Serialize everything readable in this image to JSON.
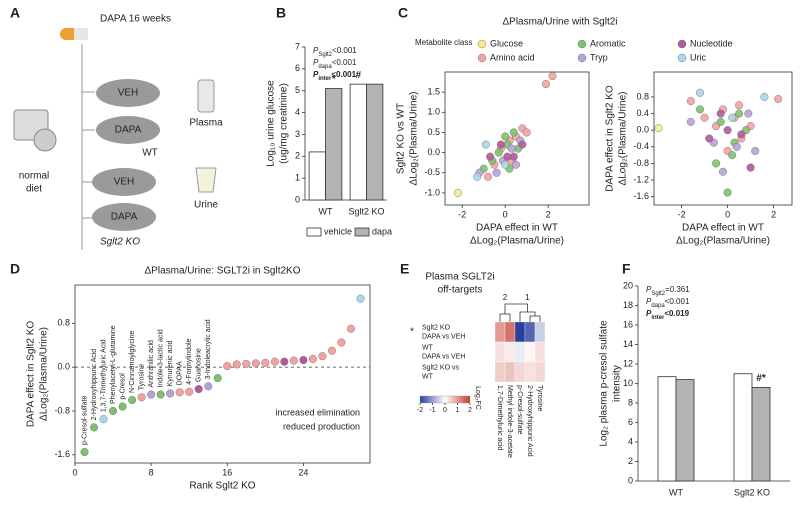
{
  "panel_letters": [
    "A",
    "B",
    "C",
    "D",
    "E",
    "F"
  ],
  "panel_a": {
    "pill_label": "DAPA 16 weeks",
    "diet": [
      "normal",
      "diet"
    ],
    "mice": [
      "VEH",
      "DAPA",
      "VEH",
      "DAPA"
    ],
    "groups": [
      "WT",
      "Sglt2 KO"
    ],
    "samples": [
      "Plasma",
      "Urine"
    ]
  },
  "chart_data": [
    {
      "type": "bar",
      "y_label": [
        "Log₁₀ urine glucose",
        "(ug/mg creatinine)"
      ],
      "p_values": [
        {
          "p": "P",
          "sub": "Sglt2",
          "rest": "<0.001"
        },
        {
          "p": "P",
          "sub": "dapa",
          "rest": "<0.001"
        },
        {
          "p": "P",
          "sub": "inter",
          "rest": "<0.001",
          "bold": true
        }
      ],
      "categories": [
        "WT",
        "Sglt2 KO"
      ],
      "series": [
        {
          "name": "vehicle",
          "color": "#ffffff",
          "values": [
            2.2,
            5.3
          ],
          "markers": [
            null,
            "#"
          ]
        },
        {
          "name": "dapa",
          "color": "#b3b3b3",
          "values": [
            5.1,
            5.3
          ],
          "markers": [
            "*",
            null
          ]
        }
      ],
      "ylim": [
        0,
        7
      ],
      "yticks": [
        0,
        1,
        2,
        3,
        4,
        5,
        6,
        7
      ],
      "legend": "bottom"
    },
    {
      "type": "scatter",
      "title": "ΔPlasma/Urine with Sglt2i",
      "legend_title": "Metabolite class",
      "x_label": [
        "DAPA effect in WT",
        "ΔLog₂(Plasma/Urine)"
      ],
      "y_label": [
        "Sglt2 KO vs WT",
        "ΔLog₂(Plasma/Urine)"
      ],
      "xlim": [
        -2.8,
        3.9
      ],
      "xticks": [
        -2,
        0,
        2
      ],
      "ylim": [
        -1.3,
        2.0
      ],
      "yticks": [
        {
          "value": -1,
          "label": "-1.0"
        },
        -0.5,
        {
          "value": 0,
          "label": "0.0"
        },
        0.5,
        {
          "value": 1,
          "label": "1.0"
        },
        1.5
      ],
      "series": [
        {
          "name": "Glucose",
          "color": "#f3ec8e",
          "x": [
            -2.2
          ],
          "values": [
            -1.0
          ]
        },
        {
          "name": "Amino acid",
          "color": "#f2a3a0",
          "x": [
            2.2,
            -0.5,
            0.2,
            0.5,
            -0.2,
            0.8,
            1.0,
            -0.8,
            0.3,
            1.9
          ],
          "values": [
            1.9,
            -0.3,
            0.3,
            0.4,
            0.1,
            0.6,
            0.5,
            -0.6,
            -0.2,
            1.7
          ]
        },
        {
          "name": "Aromatic",
          "color": "#7dc26b",
          "x": [
            -0.3,
            0.1,
            0.4,
            -0.6,
            0.2,
            0.6,
            -1.0,
            0.0
          ],
          "values": [
            0.0,
            0.2,
            0.5,
            -0.2,
            -0.4,
            0.1,
            -0.4,
            0.4
          ]
        },
        {
          "name": "Tryp",
          "color": "#b7a2d8",
          "x": [
            -0.4,
            0.3,
            -0.1,
            0.7,
            -1.2,
            0.5
          ],
          "values": [
            -0.5,
            0.1,
            -0.2,
            0.3,
            -0.5,
            -0.3
          ]
        },
        {
          "name": "Nucleotide",
          "color": "#b3589f",
          "x": [
            0.1,
            -0.2,
            0.4,
            0.8,
            -0.7
          ],
          "values": [
            -0.1,
            0.2,
            -0.1,
            0.2,
            -0.1
          ]
        },
        {
          "name": "Uric",
          "color": "#a8d6ea",
          "x": [
            -1.3,
            0.0,
            -0.9
          ],
          "values": [
            -0.6,
            -0.3,
            0.2
          ]
        }
      ]
    },
    {
      "type": "scatter",
      "x_label": [
        "DAPA effect in WT",
        "ΔLog₂(Plasma/Urine)"
      ],
      "y_label": [
        "DAPA effect in Sglt2 KO",
        "ΔLog₂(Plasma/Urine)"
      ],
      "xlim": [
        -3.2,
        2.8
      ],
      "xticks": [
        -2,
        0,
        2
      ],
      "ylim": [
        -1.8,
        1.4
      ],
      "yticks": [
        -1.6,
        -1.2,
        -0.8,
        -0.4,
        {
          "value": 0,
          "label": "0.0"
        },
        0.4,
        0.8
      ],
      "series": [
        {
          "color": "#f3ec8e",
          "x": [
            -3.0
          ],
          "values": [
            0.05
          ]
        },
        {
          "color": "#f2a3a0",
          "x": [
            2.2,
            -0.5,
            0.3,
            0.6,
            -0.2,
            1.0,
            -1.0,
            0.0,
            0.5,
            -1.6
          ],
          "values": [
            0.75,
            0.1,
            0.3,
            -0.2,
            0.5,
            0.1,
            0.3,
            -0.5,
            0.6,
            0.7
          ]
        },
        {
          "color": "#7dc26b",
          "x": [
            -0.3,
            0.2,
            0.5,
            -0.5,
            0.0,
            0.8,
            -1.2,
            0.3
          ],
          "values": [
            0.2,
            -0.6,
            0.4,
            -0.8,
            -1.5,
            0.0,
            0.5,
            -0.3
          ]
        },
        {
          "color": "#b7a2d8",
          "x": [
            -0.6,
            0.4,
            -0.2,
            1.2,
            -1.6,
            0.9
          ],
          "values": [
            -0.3,
            -0.4,
            -1.0,
            -0.5,
            0.2,
            0.4
          ]
        },
        {
          "color": "#b3589f",
          "x": [
            0.0,
            -0.3,
            0.6,
            1.0,
            -0.8
          ],
          "values": [
            0.0,
            0.4,
            -0.1,
            -0.9,
            -0.2
          ]
        },
        {
          "color": "#a8d6ea",
          "x": [
            -1.2,
            0.2,
            1.6
          ],
          "values": [
            0.9,
            0.3,
            0.8
          ]
        }
      ]
    },
    {
      "type": "scatter",
      "title": "ΔPlasma/Urine: SGLT2i in Sglt2KO",
      "x_label": [
        "Rank Sglt2 KO"
      ],
      "y_label": [
        "DAPA effect in Sglt2 KO",
        "ΔLog₂(Plasma/Urine)"
      ],
      "xlim": [
        0,
        31
      ],
      "xticks": [
        0,
        8,
        16,
        24
      ],
      "ylim": [
        -1.75,
        1.5
      ],
      "yticks": [
        -1.6,
        -0.8,
        {
          "value": 0,
          "label": "0.0"
        },
        0.8
      ],
      "zero_line": true,
      "x": [
        1,
        2,
        3,
        4,
        5,
        6,
        7,
        8,
        9,
        10,
        11,
        12,
        13,
        14,
        15,
        16,
        17,
        18,
        19,
        20,
        21,
        22,
        23,
        24,
        25,
        26,
        27,
        28,
        29,
        30
      ],
      "values": [
        -1.55,
        -1.1,
        -0.95,
        -0.8,
        -0.72,
        -0.6,
        -0.55,
        -0.5,
        -0.5,
        -0.48,
        -0.46,
        -0.45,
        -0.4,
        -0.35,
        -0.2,
        0.02,
        0.05,
        0.06,
        0.07,
        0.08,
        0.1,
        0.1,
        0.12,
        0.13,
        0.15,
        0.2,
        0.3,
        0.45,
        0.7,
        1.25
      ],
      "colors": [
        "#7dc26b",
        "#7dc26b",
        "#a8d6ea",
        "#7dc26b",
        "#7dc26b",
        "#7dc26b",
        "#f2a3a0",
        "#b7a2d8",
        "#7dc26b",
        "#b7a2d8",
        "#f2a3a0",
        "#f2a3a0",
        "#b3589f",
        "#b7a2d8",
        "#7dc26b",
        "#f2a3a0",
        "#f2a3a0",
        "#f2a3a0",
        "#f2a3a0",
        "#f2a3a0",
        "#f2a3a0",
        "#b3589f",
        "#f2a3a0",
        "#b3589f",
        "#f2a3a0",
        "#f2a3a0",
        "#f2a3a0",
        "#f2a3a0",
        "#f2a3a0",
        "#a8d6ea"
      ],
      "point_labels": [
        "p-Cresol-sulfate",
        "2-Hydroxyhippuric Acid",
        "1,3,7-Trimethyluric Acid",
        "Phenylacetyl-L-glutamine",
        "p-Cresol",
        "N-Cinnamoylglycine",
        "Tyrosine",
        "Anthranilic acid",
        "Indole-3-lactic acid",
        "Kynurenic acid",
        "DOPAA",
        "4-Formylindole",
        "Guanosine",
        "3-Indoleacrylic acid",
        null,
        null,
        null,
        null,
        null,
        null,
        null,
        null,
        null,
        null,
        null,
        null,
        null,
        null,
        null,
        null
      ],
      "annotations": [
        "increased elimination",
        "reduced production"
      ]
    },
    {
      "type": "heatmap",
      "title": [
        "Plasma SGLT2i",
        "off-targets"
      ],
      "rows": [
        [
          "Sglt2 KO",
          "DAPA vs VEH"
        ],
        [
          "WT",
          "DAPA vs VEH"
        ],
        [
          "Sglt2 KO vs",
          "WT"
        ]
      ],
      "row_marks": [
        "*",
        null,
        null
      ],
      "columns": [
        "1,7-Dimethyluric acid",
        "Methyl indole-3-acetate",
        "p-Cresol-sulfate",
        "2-Hydroxyhippuric Acid",
        "Tyrosine"
      ],
      "values": [
        [
          1.0,
          1.4,
          -2.0,
          -1.6,
          -0.5
        ],
        [
          0.3,
          0.2,
          -0.2,
          0.1,
          0.3
        ],
        [
          0.5,
          0.6,
          0.4,
          0.3,
          0.4
        ]
      ],
      "clusters": [
        "2",
        "1"
      ],
      "colorbar_label": "Log₂FC",
      "zlim": [
        -2,
        2
      ],
      "zticks": [
        -2,
        -1,
        0,
        1,
        2
      ],
      "colors": [
        "#2b3f9c",
        "#ffffff",
        "#c0392b"
      ]
    },
    {
      "type": "bar",
      "y_label": [
        "Log₂ plasma p-cresol sulfate",
        "intensity"
      ],
      "p_values": [
        {
          "p": "P",
          "sub": "Sglt2",
          "rest": "=0.361"
        },
        {
          "p": "P",
          "sub": "dapa",
          "rest": "<0.001"
        },
        {
          "p": "P",
          "sub": "inter",
          "rest": "<0.019",
          "bold": true
        }
      ],
      "categories": [
        "WT",
        "Sglt2 KO"
      ],
      "series": [
        {
          "color": "#ffffff",
          "values": [
            10.7,
            11.0
          ],
          "markers": [
            null,
            null
          ]
        },
        {
          "color": "#b3b3b3",
          "values": [
            10.4,
            9.6
          ],
          "markers": [
            null,
            "#*"
          ]
        }
      ],
      "ylim": [
        0,
        20
      ],
      "yticks": [
        0,
        2,
        4,
        6,
        8,
        10,
        12,
        14,
        16,
        18,
        20
      ]
    }
  ]
}
